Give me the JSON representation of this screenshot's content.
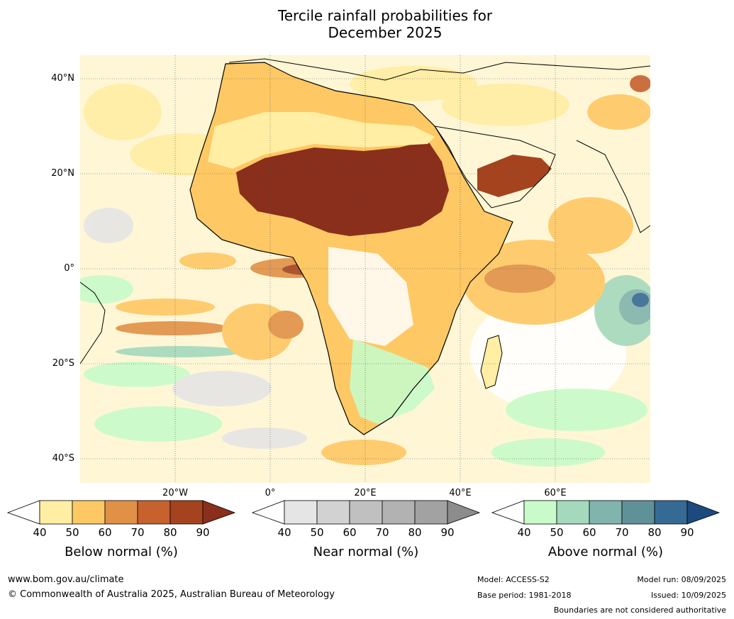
{
  "title_line1": "Tercile rainfall probabilities for",
  "title_line2": "December 2025",
  "lat_labels": [
    "40°N",
    "20°N",
    "0°",
    "20°S",
    "40°S"
  ],
  "lon_labels": [
    "20°W",
    "0°",
    "20°E",
    "40°E",
    "60°E"
  ],
  "colorbars": [
    {
      "title": "Below normal (%)",
      "ticks": [
        "40",
        "50",
        "60",
        "70",
        "80",
        "90"
      ],
      "colors": [
        "#ffeea3",
        "#fec864",
        "#e09146",
        "#c7612e",
        "#a5431f"
      ],
      "extend": "#8a2f1b"
    },
    {
      "title": "Near normal (%)",
      "ticks": [
        "40",
        "50",
        "60",
        "70",
        "80",
        "90"
      ],
      "colors": [
        "#e5e5e5",
        "#d2d2d2",
        "#c0c0c0",
        "#b2b2b2",
        "#a2a2a2"
      ],
      "extend": "#8c8c8c"
    },
    {
      "title": "Above normal (%)",
      "ticks": [
        "40",
        "50",
        "60",
        "70",
        "80",
        "90"
      ],
      "colors": [
        "#c8fbc9",
        "#a4d9bd",
        "#80b4ad",
        "#5f9199",
        "#356a94"
      ],
      "extend": "#1c4a7c"
    }
  ],
  "footer": {
    "website": "www.bom.gov.au/climate",
    "copyright": "© Commonwealth of Australia 2025, Australian Bureau of Meteorology",
    "model": "Model: ACCESS-S2",
    "base_period": "Base period: 1981-2018",
    "model_run": "Model run: 08/09/2025",
    "issued": "Issued: 10/09/2025",
    "boundaries": "Boundaries are not considered authoritative"
  }
}
